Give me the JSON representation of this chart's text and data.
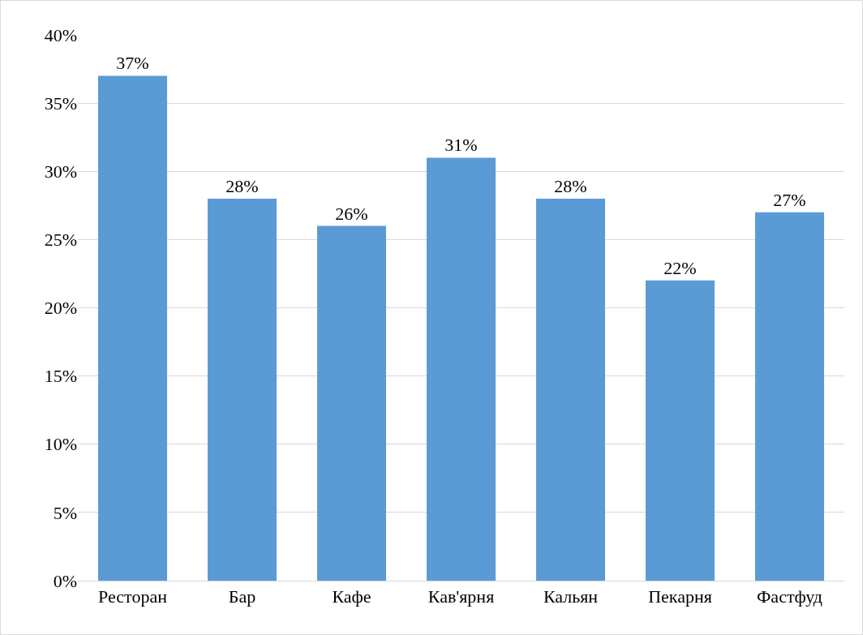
{
  "chart_data": {
    "type": "bar",
    "categories": [
      "Ресторан",
      "Бар",
      "Кафе",
      "Кав'ярня",
      "Кальян",
      "Пекарня",
      "Фастфуд"
    ],
    "values": [
      37,
      28,
      26,
      31,
      28,
      22,
      27
    ],
    "value_labels": [
      "37%",
      "28%",
      "26%",
      "31%",
      "28%",
      "22%",
      "27%"
    ],
    "color": "#5b9bd5",
    "ylim": [
      0,
      40
    ],
    "yticks": [
      {
        "value": 0,
        "label": "0%"
      },
      {
        "value": 5,
        "label": "5%"
      },
      {
        "value": 10,
        "label": "10%"
      },
      {
        "value": 15,
        "label": "15%"
      },
      {
        "value": 20,
        "label": "20%"
      },
      {
        "value": 25,
        "label": "25%"
      },
      {
        "value": 30,
        "label": "30%"
      },
      {
        "value": 35,
        "label": "35%"
      },
      {
        "value": 40,
        "label": "40%"
      }
    ],
    "grid": "y"
  }
}
